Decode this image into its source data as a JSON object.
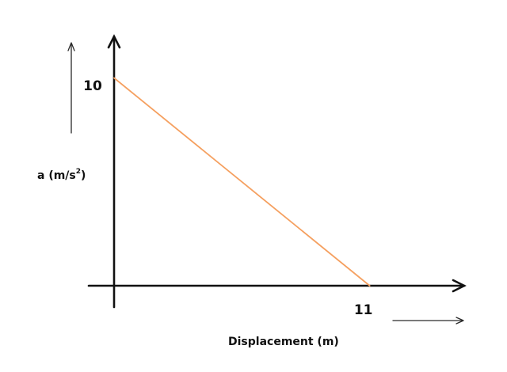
{
  "chart_data": {
    "type": "line",
    "title": "",
    "xlabel": "Displacement (m)",
    "ylabel": "a (m/s²)",
    "ylabel_parts": {
      "main": "a (m/s",
      "sup": "2",
      "tail": ")"
    },
    "x_tick_labels": [
      "11"
    ],
    "y_tick_labels": [
      "10"
    ],
    "x": [
      0,
      11
    ],
    "y": [
      10,
      0
    ],
    "xlim": [
      0,
      15
    ],
    "ylim": [
      0,
      12
    ],
    "grid": false,
    "series": [
      {
        "values": [
          10,
          0
        ],
        "color": "#f5a060"
      }
    ]
  },
  "colors": {
    "axis": "#111111",
    "line": "#f5a060"
  }
}
